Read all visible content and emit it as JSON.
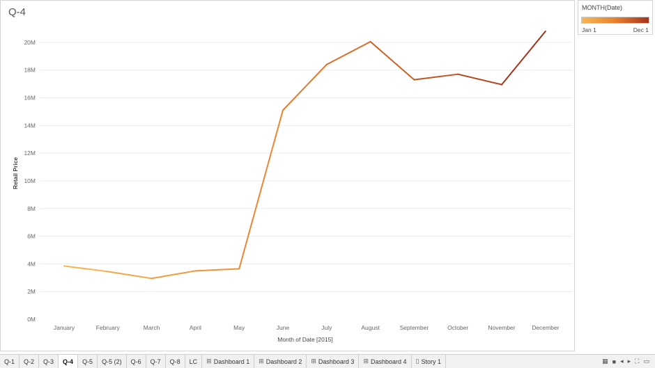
{
  "sheet": {
    "title": "Q-4"
  },
  "legend": {
    "title": "MONTH(Date)",
    "min_label": "Jan 1",
    "max_label": "Dec 1",
    "colors": [
      "#f6b955",
      "#e8802e",
      "#a5331a"
    ]
  },
  "chart_data": {
    "type": "line",
    "xlabel": "Month of Date [2015]",
    "ylabel": "Retail Price",
    "ylim": [
      0,
      21000000
    ],
    "yticks": [
      0,
      2000000,
      4000000,
      6000000,
      8000000,
      10000000,
      12000000,
      14000000,
      16000000,
      18000000,
      20000000
    ],
    "ytick_labels": [
      "0M",
      "2M",
      "4M",
      "6M",
      "8M",
      "10M",
      "12M",
      "14M",
      "16M",
      "18M",
      "20M"
    ],
    "grid": true,
    "categories": [
      "January",
      "February",
      "March",
      "April",
      "May",
      "June",
      "July",
      "August",
      "September",
      "October",
      "November",
      "December"
    ],
    "series": [
      {
        "values": [
          3850000,
          3450000,
          2950000,
          3500000,
          3650000,
          15100000,
          18400000,
          20050000,
          17300000,
          17700000,
          16950000,
          20800000
        ]
      }
    ],
    "colors": [
      "#f6bd5f",
      "#f5b352",
      "#f3a847",
      "#f19d3f",
      "#ef9238",
      "#eb8632",
      "#e47a2d",
      "#db6d28",
      "#cf6024",
      "#c35320",
      "#b6461d",
      "#a5331a"
    ]
  },
  "tabs": [
    {
      "label": "Q-1",
      "icon": ""
    },
    {
      "label": "Q-2",
      "icon": ""
    },
    {
      "label": "Q-3",
      "icon": ""
    },
    {
      "label": "Q-4",
      "icon": "",
      "active": true
    },
    {
      "label": "Q-5",
      "icon": ""
    },
    {
      "label": "Q-5 (2)",
      "icon": ""
    },
    {
      "label": "Q-6",
      "icon": ""
    },
    {
      "label": "Q-7",
      "icon": ""
    },
    {
      "label": "Q-8",
      "icon": ""
    },
    {
      "label": "LC",
      "icon": ""
    },
    {
      "label": "Dashboard 1",
      "icon": "dashboard-icon"
    },
    {
      "label": "Dashboard 2",
      "icon": "dashboard-icon"
    },
    {
      "label": "Dashboard 3",
      "icon": "dashboard-icon"
    },
    {
      "label": "Dashboard 4",
      "icon": "dashboard-icon"
    },
    {
      "label": "Story 1",
      "icon": "story-icon"
    }
  ],
  "controls": [
    {
      "name": "grid-view-icon",
      "glyph": "▦"
    },
    {
      "name": "filmstrip-view-icon",
      "glyph": "■"
    },
    {
      "name": "previous-sheet-icon",
      "glyph": "◂"
    },
    {
      "name": "next-sheet-icon",
      "glyph": "▸"
    },
    {
      "name": "fullscreen-icon",
      "glyph": "⛶"
    },
    {
      "name": "presentation-mode-icon",
      "glyph": "▭"
    }
  ]
}
